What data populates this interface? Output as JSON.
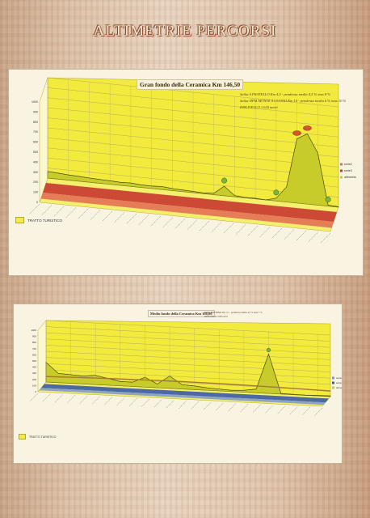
{
  "page": {
    "title": "ALTIMETRIE PERCORSI"
  },
  "colors": {
    "terrain": "#c7cc2b",
    "terrain_edge": "#7b7f15",
    "backdrop": "#f2ea3c",
    "floor": "#f5ef6e",
    "red_band": "#c8372f",
    "blue_band": "#3a5aa6",
    "route_line": "#a7763a",
    "marker": "#7db53c",
    "marker_red": "#d9542e"
  },
  "charts": [
    {
      "id": "gran-fondo",
      "title": "Gran fondo della Ceramica Km 146,50",
      "notes": [
        "Salita S.FRATELLO Km 4,5 - pendenza media 4,5 % max 8 %",
        "Salita DPM MONTE S.CUONO Km 14 - pendenza media 6 % max 10 %",
        "DISLIVELLO 1.620 metri"
      ],
      "legend_label": "TRATTO TURISTICO",
      "series_labels": [
        "serie2",
        "serie3",
        "altimetria"
      ]
    },
    {
      "id": "medio-fondo",
      "title": "Medio fondo della Ceramica Km 108,00",
      "notes": [
        "Salita MACRISIA Km 7,1 - pendenza media 4,5 % max 7 %",
        "DISLIVELLO 990 metri"
      ],
      "legend_label": "TRATTO TURISTICO",
      "series_labels": [
        "serie2",
        "serie3",
        "altimetria"
      ]
    }
  ],
  "chart_data": [
    {
      "type": "area",
      "title": "Gran fondo della Ceramica Km 146,50",
      "projection": "3d",
      "ylim": [
        0,
        1000
      ],
      "yticks": [
        0,
        100,
        200,
        300,
        400,
        500,
        600,
        700,
        800,
        900,
        1000
      ],
      "x_tick_count": 25,
      "series": [
        {
          "name": "altimetria",
          "kind": "area",
          "values": [
            65,
            60,
            52,
            48,
            42,
            38,
            35,
            30,
            34,
            26,
            24,
            30,
            20,
            16,
            12,
            8,
            14,
            95,
            12,
            4,
            6,
            0,
            28,
            150,
            640,
            700,
            520,
            10,
            5
          ]
        },
        {
          "name": "serie2",
          "kind": "band",
          "values": []
        },
        {
          "name": "serie3",
          "kind": "band",
          "values": []
        }
      ],
      "marked_points": [
        {
          "index": 17,
          "label": ""
        },
        {
          "index": 22,
          "label": ""
        },
        {
          "index": 24,
          "label": ""
        },
        {
          "index": 25,
          "label": ""
        },
        {
          "index": 27,
          "label": ""
        }
      ],
      "legend_placement": "right",
      "grid": true
    },
    {
      "type": "area",
      "title": "Medio fondo della Ceramica Km 108,00",
      "projection": "3d",
      "ylim": [
        0,
        1000
      ],
      "yticks": [
        0,
        100,
        200,
        300,
        400,
        500,
        600,
        700,
        800,
        900,
        1000
      ],
      "x_tick_count": 24,
      "series": [
        {
          "name": "altimetria",
          "kind": "area",
          "values": [
            320,
            150,
            140,
            130,
            150,
            110,
            70,
            70,
            160,
            60,
            200,
            70,
            60,
            40,
            30,
            20,
            30,
            60,
            640,
            10,
            5,
            3,
            8,
            12
          ]
        },
        {
          "name": "serie2",
          "kind": "band",
          "values": []
        },
        {
          "name": "serie3",
          "kind": "band",
          "values": []
        }
      ],
      "marked_points": [
        {
          "index": 18,
          "label": ""
        }
      ],
      "legend_placement": "right",
      "grid": true
    }
  ]
}
